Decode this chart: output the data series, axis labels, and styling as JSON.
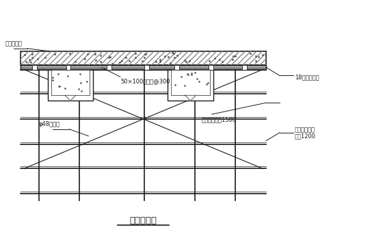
{
  "title": "楼板支模图",
  "bg_color": "#ffffff",
  "line_color": "#1a1a1a",
  "annotations": {
    "concrete": "混凝土楼面",
    "joist": "50×100木龙骨@300",
    "plywood": "18厚竹胶模板",
    "hbar": "水平拉杆步距1500",
    "scaffold1": "扣件式脚手架",
    "scaffold2": "间距1200",
    "diag": "φ48斜拉杆"
  },
  "fontsize": 6.0
}
